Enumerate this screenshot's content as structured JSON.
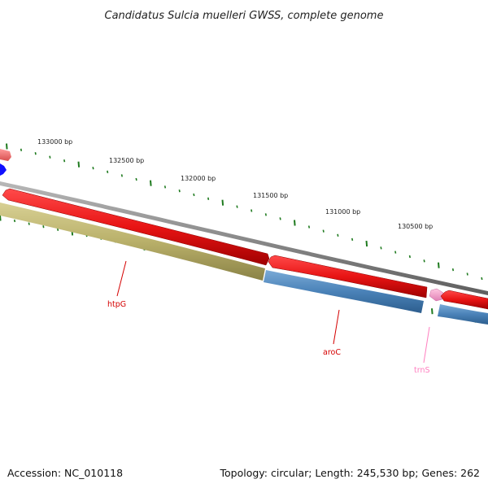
{
  "title": "Candidatus Sulcia muelleri GWSS, complete genome",
  "footer": {
    "accession": "Accession: NC_010118",
    "summary": "Topology: circular; Length: 245,530 bp; Genes: 262"
  },
  "scale": {
    "labels": [
      "133000 bp",
      "132500 bp",
      "132000 bp",
      "131500 bp",
      "131000 bp",
      "130500 bp"
    ],
    "tick_color": "#1e7a1e"
  },
  "genes": [
    {
      "name": "htpG",
      "color": "#d40000"
    },
    {
      "name": "aroC",
      "color": "#d40000"
    },
    {
      "name": "trnS",
      "color": "#ff80c0"
    }
  ],
  "colors": {
    "cds_forward": "#e81414",
    "cds_reverse_olive": "#b9b06a",
    "cds_reverse_blue": "#4a82b8",
    "backbone": "#8a8a8a",
    "trna": "#f4a0cc",
    "small_marker": "#1010ff"
  }
}
